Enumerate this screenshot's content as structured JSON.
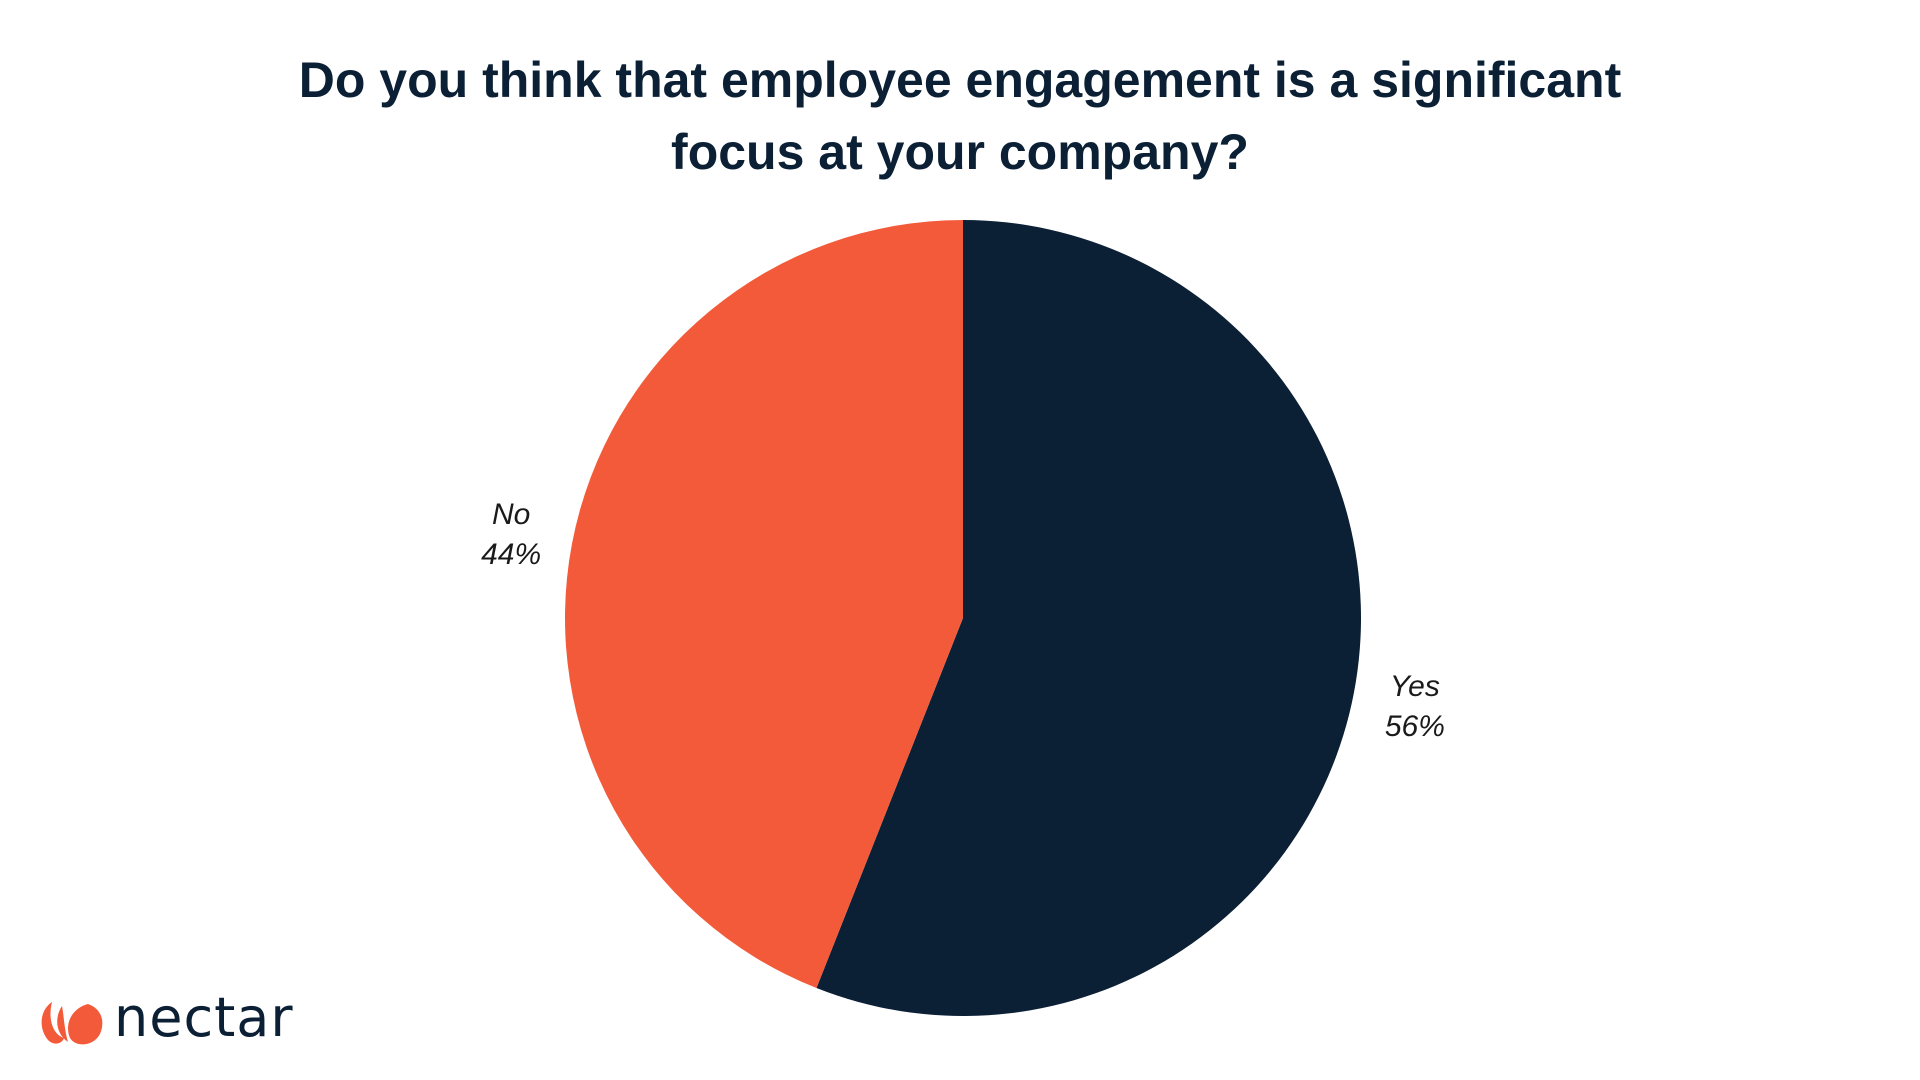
{
  "chart_data": {
    "type": "pie",
    "title": [
      "Do you think that employee engagement is a significant",
      "focus at your company?"
    ],
    "slices": [
      {
        "label": "Yes",
        "value": 56,
        "value_label": "56%",
        "color": "#0b1f35"
      },
      {
        "label": "No",
        "value": 44,
        "value_label": "44%",
        "color": "#f35a3a"
      }
    ],
    "start": "top",
    "direction": "clockwise",
    "legend": "none"
  },
  "logo": {
    "text": "nectar",
    "color": "#f35a3a"
  }
}
